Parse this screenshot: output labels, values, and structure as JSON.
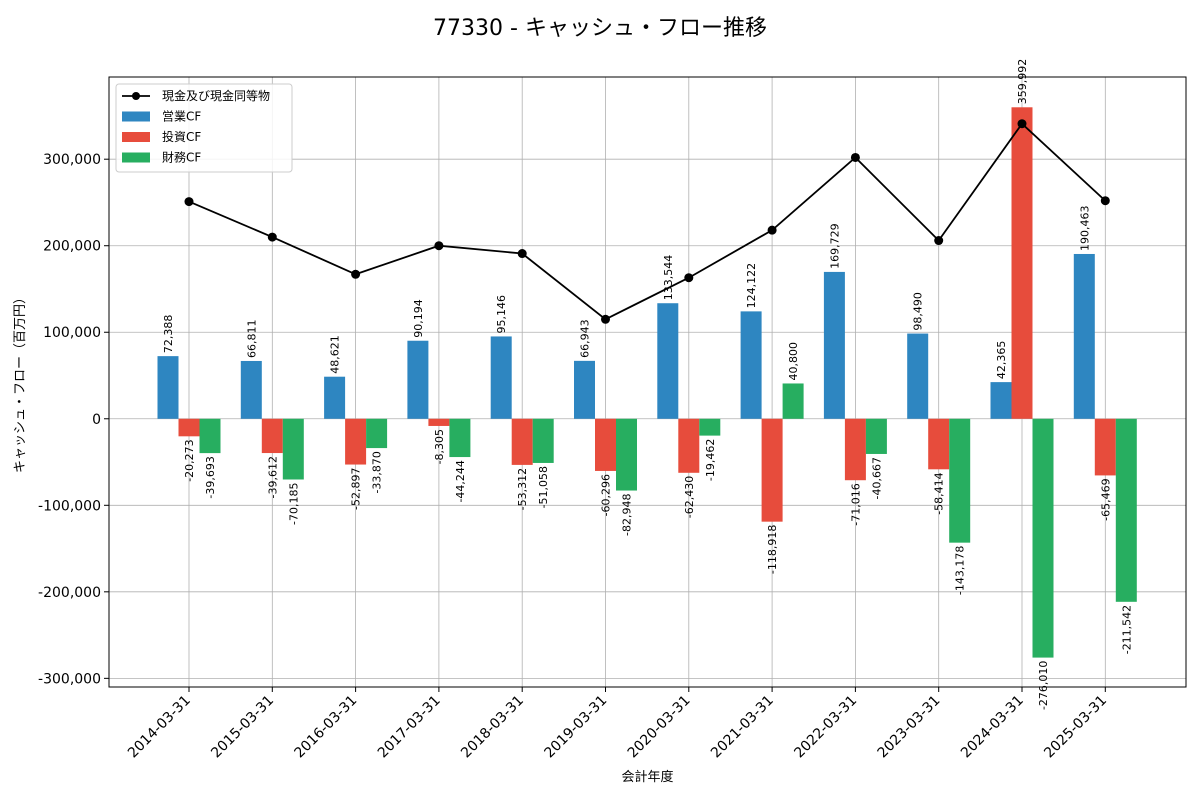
{
  "chart_data": {
    "type": "bar",
    "title": "77330 - キャッシュ・フロー推移",
    "xlabel": "会計年度",
    "ylabel": "キャッシュ・フロー（百万円）",
    "ylim": [
      -310000,
      395000
    ],
    "yticks": [
      -300000,
      -200000,
      -100000,
      0,
      100000,
      200000,
      300000
    ],
    "ytick_labels": [
      "-300,000",
      "-200,000",
      "-100,000",
      "0",
      "100,000",
      "200,000",
      "300,000"
    ],
    "grid": true,
    "legend_position": "top-left",
    "categories": [
      "2014-03-31",
      "2015-03-31",
      "2016-03-31",
      "2017-03-31",
      "2018-03-31",
      "2019-03-31",
      "2020-03-31",
      "2021-03-31",
      "2022-03-31",
      "2023-03-31",
      "2024-03-31",
      "2025-03-31"
    ],
    "series": [
      {
        "name": "営業CF",
        "kind": "bar",
        "color": "#2e86c1",
        "values": [
          72388,
          66811,
          48621,
          90194,
          95146,
          66943,
          133544,
          124122,
          169729,
          98490,
          42365,
          190463
        ],
        "labels": [
          "72,388",
          "66,811",
          "48,621",
          "90,194",
          "95,146",
          "66,943",
          "133,544",
          "124,122",
          "169,729",
          "98,490",
          "42,365",
          "190,463"
        ]
      },
      {
        "name": "投資CF",
        "kind": "bar",
        "color": "#e74c3c",
        "values": [
          -20273,
          -39612,
          -52897,
          -8305,
          -53312,
          -60296,
          -62430,
          -118918,
          -71016,
          -58414,
          359992,
          -65469
        ],
        "labels": [
          "-20,273",
          "-39,612",
          "-52,897",
          "-8,305",
          "-53,312",
          "-60,296",
          "-62,430",
          "-118,918",
          "-71,016",
          "-58,414",
          "359,992",
          "-65,469"
        ]
      },
      {
        "name": "財務CF",
        "kind": "bar",
        "color": "#27ae60",
        "values": [
          -39693,
          -70185,
          -33870,
          -44244,
          -51058,
          -82948,
          -19462,
          40800,
          -40667,
          -143178,
          -276010,
          -211542
        ],
        "labels": [
          "-39,693",
          "-70,185",
          "-33,870",
          "-44,244",
          "-51,058",
          "-82,948",
          "-19,462",
          "40,800",
          "-40,667",
          "-143,178",
          "-276,010",
          "-211,542"
        ]
      },
      {
        "name": "現金及び現金同等物",
        "kind": "line",
        "color": "#000000",
        "values": [
          251000,
          210000,
          167000,
          200000,
          191000,
          115000,
          163000,
          218000,
          302000,
          206000,
          341000,
          252000
        ]
      }
    ]
  }
}
